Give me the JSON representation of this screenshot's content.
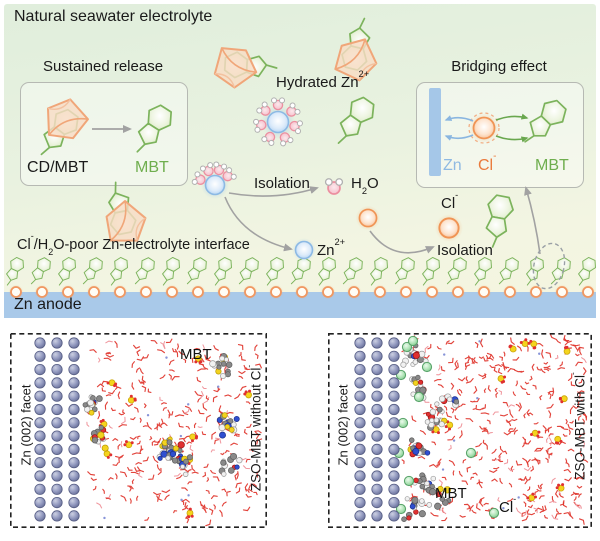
{
  "top": {
    "title": "Natural seawater electrolyte",
    "sustained": {
      "title": "Sustained release",
      "cd_mbt": "CD/MBT",
      "mbt": "MBT"
    },
    "bridging": {
      "title": "Bridging effect",
      "zn": "Zn",
      "cl_base": "Cl",
      "cl_sup": "-",
      "mbt": "MBT"
    },
    "hydrated": {
      "base": "Hydrated Zn",
      "sup": "2+"
    },
    "isolation_a": "Isolation",
    "isolation_b": "Isolation",
    "h2o": {
      "p1": "H",
      "sub": "2",
      "p2": "O"
    },
    "zn_ion": {
      "base": "Zn",
      "sup": "2+"
    },
    "cl_ion": {
      "base": "Cl",
      "sup": "-"
    },
    "interface_label": {
      "p1": "Cl",
      "sup1": "-",
      "p2": "/H",
      "sub1": "2",
      "p3": "O-poor Zn-electrolyte interface"
    },
    "anode": "Zn anode"
  },
  "bottom": {
    "left": {
      "facet": "Zn (002) facet",
      "mbt": "MBT",
      "side_base": "ZSO-MBT without Cl",
      "side_sup": "-"
    },
    "right": {
      "facet": "Zn (002) facet",
      "mbt": "MBT",
      "cl_base": "Cl",
      "cl_sup": "-",
      "side_base": "ZSO-MBT with Cl",
      "side_sup": "-"
    }
  },
  "icons": {
    "mbt_molecule": "green fused pentagon-hexagon ring",
    "cd_cavity": "orange cyclodextrin cup",
    "hydrated_zn": "blue ion surrounded by water molecules",
    "water_molecule": "pink oxygen with two white hydrogens",
    "zn_ion": "blue glowing circle",
    "cl_ion": "orange glowing circle",
    "zn_atom": "slate sphere lattice",
    "cl_atom": "green sphere"
  },
  "colors": {
    "mbt_green": "#6fae4e",
    "cd_orange": "#f0975e",
    "zn_blue": "#8fb9e2",
    "cl_orange": "#ea7a3c",
    "anode_blue": "#a9c9e9",
    "water_red": "#e0342b",
    "zn_atom_slate": "#8d94b8",
    "cl_atom_green": "#93d6a0",
    "sulfur_yellow": "#f2d21f"
  }
}
